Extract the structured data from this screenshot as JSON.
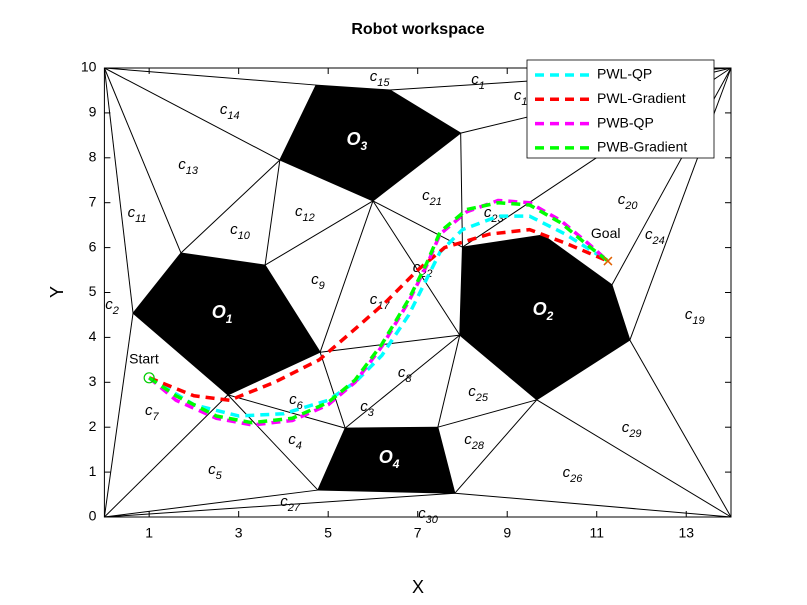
{
  "chart_data": {
    "type": "line",
    "title": "Robot workspace",
    "xlabel": "X",
    "ylabel": "Y",
    "xlim": [
      0,
      14
    ],
    "ylim": [
      0,
      10
    ],
    "xticks": [
      1,
      3,
      5,
      7,
      9,
      11,
      13
    ],
    "yticks": [
      0,
      1,
      2,
      3,
      4,
      5,
      6,
      7,
      8,
      9,
      10
    ],
    "series": [
      {
        "name": "PWL-QP",
        "color": "#00ffff",
        "x": [
          1,
          2,
          3,
          4,
          5,
          5.6,
          6.2,
          6.8,
          7.2,
          7.5,
          8,
          8.8,
          9.5,
          10.3,
          11.25
        ],
        "y": [
          3.1,
          2.5,
          2.25,
          2.3,
          2.6,
          3.0,
          3.6,
          4.5,
          5.3,
          5.9,
          6.4,
          6.7,
          6.7,
          6.3,
          5.7
        ]
      },
      {
        "name": "PWL-Gradient",
        "color": "#ff0000",
        "x": [
          1,
          2,
          2.8,
          3.8,
          4.8,
          5.5,
          6.3,
          7,
          7.6,
          8.6,
          9.5,
          10.3,
          11.25
        ],
        "y": [
          3.1,
          2.7,
          2.6,
          3.0,
          3.5,
          4.1,
          4.8,
          5.5,
          6.0,
          6.3,
          6.4,
          6.1,
          5.7
        ]
      },
      {
        "name": "PWB-QP",
        "color": "#ff00ff",
        "x": [
          1,
          1.6,
          2.5,
          3.3,
          4.2,
          5,
          5.6,
          6.2,
          6.8,
          7.2,
          7.5,
          8.1,
          8.8,
          9.5,
          10.2,
          10.8,
          11.25
        ],
        "y": [
          3.1,
          2.6,
          2.2,
          2.05,
          2.15,
          2.5,
          3.0,
          3.8,
          4.8,
          5.6,
          6.3,
          6.8,
          7.05,
          7.0,
          6.6,
          6.1,
          5.7
        ]
      },
      {
        "name": "PWB-Gradient",
        "color": "#00ff00",
        "x": [
          1,
          1.6,
          2.5,
          3.3,
          4.2,
          5,
          5.6,
          6.2,
          6.8,
          7.2,
          7.5,
          8.1,
          8.8,
          9.5,
          10.2,
          10.8,
          11.25
        ],
        "y": [
          3.1,
          2.7,
          2.25,
          2.1,
          2.2,
          2.55,
          3.05,
          3.85,
          4.85,
          5.65,
          6.35,
          6.85,
          7.0,
          6.95,
          6.55,
          6.05,
          5.7
        ]
      }
    ],
    "legend": "top-right",
    "start": {
      "label": "Start",
      "x": 1,
      "y": 3.1,
      "color": "#00cc00"
    },
    "goal": {
      "label": "Goal",
      "x": 11.25,
      "y": 5.7,
      "color": "#e06000"
    },
    "obstacles": [
      {
        "label": "O",
        "sub": "1",
        "lx": 2.63,
        "ly": 4.54,
        "x": [
          1.71,
          3.59,
          4.82,
          2.76,
          0.64
        ],
        "y": [
          5.88,
          5.61,
          3.67,
          2.72,
          4.54
        ]
      },
      {
        "label": "O",
        "sub": "2",
        "lx": 9.8,
        "ly": 4.61,
        "x": [
          8.0,
          9.8,
          11.34,
          11.74,
          9.66,
          7.94
        ],
        "y": [
          6.01,
          6.28,
          5.17,
          3.94,
          2.61,
          4.05
        ]
      },
      {
        "label": "O",
        "sub": "3",
        "lx": 5.64,
        "ly": 8.4,
        "x": [
          4.73,
          6.38,
          7.96,
          6.0,
          3.92
        ],
        "y": [
          9.62,
          9.51,
          8.55,
          7.04,
          7.95
        ]
      },
      {
        "label": "O",
        "sub": "4",
        "lx": 6.36,
        "ly": 1.31,
        "x": [
          5.38,
          7.45,
          7.83,
          4.77
        ],
        "y": [
          1.98,
          2.0,
          0.53,
          0.6
        ]
      }
    ],
    "edges": [
      [
        0,
        10,
        4.73,
        9.62
      ],
      [
        0,
        10,
        1.71,
        5.88
      ],
      [
        0,
        10,
        3.92,
        7.95
      ],
      [
        0,
        10,
        0.64,
        4.54
      ],
      [
        0.64,
        4.54,
        0,
        0
      ],
      [
        0,
        0,
        2.76,
        2.72
      ],
      [
        0,
        0,
        4.77,
        0.6
      ],
      [
        0,
        0,
        7.83,
        0.53
      ],
      [
        1.71,
        5.88,
        3.92,
        7.95
      ],
      [
        3.59,
        5.61,
        3.92,
        7.95
      ],
      [
        3.59,
        5.61,
        6.0,
        7.04
      ],
      [
        6.0,
        7.04,
        4.82,
        3.67
      ],
      [
        6.0,
        7.04,
        7.94,
        4.05
      ],
      [
        6.0,
        7.04,
        8.0,
        6.01
      ],
      [
        7.96,
        8.55,
        8.0,
        6.01
      ],
      [
        7.96,
        8.55,
        14,
        10
      ],
      [
        6.38,
        9.51,
        14,
        10
      ],
      [
        8.0,
        6.01,
        14,
        10
      ],
      [
        11.34,
        5.17,
        14,
        10
      ],
      [
        11.74,
        3.94,
        14,
        10
      ],
      [
        11.74,
        3.94,
        14,
        0
      ],
      [
        9.66,
        2.61,
        14,
        0
      ],
      [
        9.66,
        2.61,
        7.83,
        0.53
      ],
      [
        9.66,
        2.61,
        7.45,
        2.0
      ],
      [
        7.94,
        4.05,
        7.45,
        2.0
      ],
      [
        7.94,
        4.05,
        5.38,
        1.98
      ],
      [
        4.82,
        3.67,
        5.38,
        1.98
      ],
      [
        4.82,
        3.67,
        7.94,
        4.05
      ],
      [
        2.76,
        2.72,
        5.38,
        1.98
      ],
      [
        2.76,
        2.72,
        4.77,
        0.6
      ],
      [
        7.83,
        0.53,
        14,
        0
      ]
    ],
    "cells": [
      {
        "text": "c",
        "sub": "15",
        "x": 6.15,
        "y": 9.8
      },
      {
        "text": "c",
        "sub": "1",
        "x": 8.35,
        "y": 9.73
      },
      {
        "text": "c",
        "sub": "1",
        "x": 9.3,
        "y": 9.38
      },
      {
        "text": "c",
        "sub": "14",
        "x": 2.8,
        "y": 9.06
      },
      {
        "text": "c",
        "sub": "13",
        "x": 1.87,
        "y": 7.84
      },
      {
        "text": "c",
        "sub": "11",
        "x": 0.73,
        "y": 6.77
      },
      {
        "text": "c",
        "sub": "10",
        "x": 3.03,
        "y": 6.39
      },
      {
        "text": "c",
        "sub": "12",
        "x": 4.48,
        "y": 6.79
      },
      {
        "text": "c",
        "sub": "21",
        "x": 7.32,
        "y": 7.15
      },
      {
        "text": "c",
        "sub": "23",
        "x": 8.7,
        "y": 6.77
      },
      {
        "text": "c",
        "sub": "20",
        "x": 11.69,
        "y": 7.06
      },
      {
        "text": "c",
        "sub": "24",
        "x": 12.3,
        "y": 6.28
      },
      {
        "text": "c",
        "sub": "22",
        "x": 7.11,
        "y": 5.55
      },
      {
        "text": "c",
        "sub": "9",
        "x": 4.77,
        "y": 5.28
      },
      {
        "text": "c",
        "sub": "17",
        "x": 6.15,
        "y": 4.83
      },
      {
        "text": "c",
        "sub": "2",
        "x": 0.17,
        "y": 4.72
      },
      {
        "text": "c",
        "sub": "19",
        "x": 13.19,
        "y": 4.5
      },
      {
        "text": "c",
        "sub": "8",
        "x": 6.71,
        "y": 3.21
      },
      {
        "text": "c",
        "sub": "25",
        "x": 8.35,
        "y": 2.78
      },
      {
        "text": "c",
        "sub": "6",
        "x": 4.28,
        "y": 2.61
      },
      {
        "text": "c",
        "sub": "3",
        "x": 5.87,
        "y": 2.45
      },
      {
        "text": "c",
        "sub": "7",
        "x": 1.06,
        "y": 2.36
      },
      {
        "text": "c",
        "sub": "4",
        "x": 4.26,
        "y": 1.71
      },
      {
        "text": "c",
        "sub": "28",
        "x": 8.26,
        "y": 1.71
      },
      {
        "text": "c",
        "sub": "29",
        "x": 11.78,
        "y": 1.98
      },
      {
        "text": "c",
        "sub": "26",
        "x": 10.46,
        "y": 0.98
      },
      {
        "text": "c",
        "sub": "5",
        "x": 2.47,
        "y": 1.05
      },
      {
        "text": "c",
        "sub": "27",
        "x": 4.15,
        "y": 0.33
      },
      {
        "text": "c",
        "sub": "30",
        "x": 7.23,
        "y": 0.07
      }
    ]
  }
}
